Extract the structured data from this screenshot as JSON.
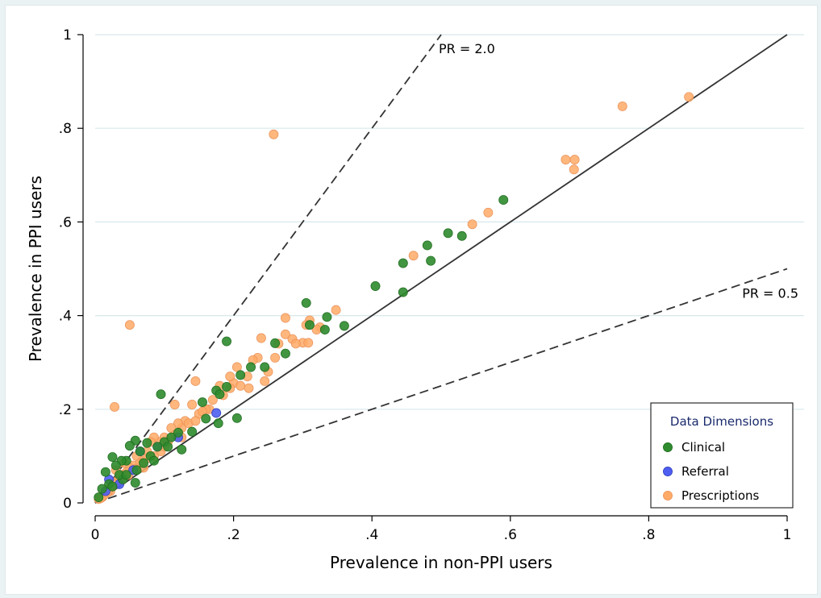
{
  "chart_data": {
    "type": "scatter",
    "title": "",
    "xlabel": "Prevalence in non-PPI users",
    "ylabel": "Prevalence in PPI users",
    "xlim": [
      0,
      1
    ],
    "ylim": [
      0,
      1
    ],
    "x_ticks": [
      {
        "value": 0,
        "label": "0"
      },
      {
        "value": 0.2,
        "label": ".2"
      },
      {
        "value": 0.4,
        "label": ".4"
      },
      {
        "value": 0.6,
        "label": ".6"
      },
      {
        "value": 0.8,
        "label": ".8"
      },
      {
        "value": 1,
        "label": "1"
      }
    ],
    "y_ticks": [
      {
        "value": 0,
        "label": "0"
      },
      {
        "value": 0.2,
        "label": ".2"
      },
      {
        "value": 0.4,
        "label": ".4"
      },
      {
        "value": 0.6,
        "label": ".6"
      },
      {
        "value": 0.8,
        "label": ".8"
      },
      {
        "value": 1,
        "label": "1"
      }
    ],
    "grid": true,
    "reference_lines": [
      {
        "slope": 2.0,
        "style": "dashed",
        "label": "PR = 2.0"
      },
      {
        "slope": 1.0,
        "style": "solid",
        "label": ""
      },
      {
        "slope": 0.5,
        "style": "dashed",
        "label": "PR = 0.5"
      }
    ],
    "legend": {
      "title": "Data Dimensions",
      "position": "bottom-right"
    },
    "series": [
      {
        "name": "Clinical",
        "color": "#2e8b2e",
        "points": [
          [
            0.59,
            0.647
          ],
          [
            0.53,
            0.57
          ],
          [
            0.51,
            0.576
          ],
          [
            0.48,
            0.55
          ],
          [
            0.485,
            0.517
          ],
          [
            0.445,
            0.512
          ],
          [
            0.405,
            0.463
          ],
          [
            0.445,
            0.45
          ],
          [
            0.36,
            0.378
          ],
          [
            0.335,
            0.397
          ],
          [
            0.305,
            0.427
          ],
          [
            0.31,
            0.38
          ],
          [
            0.332,
            0.37
          ],
          [
            0.275,
            0.319
          ],
          [
            0.26,
            0.341
          ],
          [
            0.245,
            0.29
          ],
          [
            0.225,
            0.29
          ],
          [
            0.21,
            0.273
          ],
          [
            0.19,
            0.345
          ],
          [
            0.19,
            0.248
          ],
          [
            0.175,
            0.24
          ],
          [
            0.18,
            0.232
          ],
          [
            0.205,
            0.181
          ],
          [
            0.178,
            0.17
          ],
          [
            0.155,
            0.215
          ],
          [
            0.16,
            0.18
          ],
          [
            0.14,
            0.152
          ],
          [
            0.125,
            0.114
          ],
          [
            0.095,
            0.232
          ],
          [
            0.12,
            0.15
          ],
          [
            0.1,
            0.13
          ],
          [
            0.09,
            0.12
          ],
          [
            0.075,
            0.128
          ],
          [
            0.065,
            0.11
          ],
          [
            0.058,
            0.133
          ],
          [
            0.05,
            0.122
          ],
          [
            0.045,
            0.09
          ],
          [
            0.038,
            0.09
          ],
          [
            0.025,
            0.098
          ],
          [
            0.03,
            0.08
          ],
          [
            0.015,
            0.066
          ],
          [
            0.02,
            0.04
          ],
          [
            0.01,
            0.03
          ],
          [
            0.058,
            0.043
          ],
          [
            0.04,
            0.05
          ],
          [
            0.06,
            0.07
          ],
          [
            0.07,
            0.085
          ],
          [
            0.08,
            0.1
          ],
          [
            0.11,
            0.14
          ],
          [
            0.085,
            0.09
          ],
          [
            0.035,
            0.06
          ],
          [
            0.005,
            0.012
          ],
          [
            0.025,
            0.035
          ],
          [
            0.045,
            0.06
          ],
          [
            0.105,
            0.12
          ]
        ]
      },
      {
        "name": "Referral",
        "color": "#4d5ef0",
        "points": [
          [
            0.175,
            0.192
          ],
          [
            0.02,
            0.05
          ],
          [
            0.055,
            0.07
          ],
          [
            0.065,
            0.11
          ],
          [
            0.035,
            0.04
          ],
          [
            0.09,
            0.12
          ],
          [
            0.12,
            0.14
          ],
          [
            0.015,
            0.025
          ]
        ]
      },
      {
        "name": "Prescriptions",
        "color": "#ffaa66",
        "points": [
          [
            0.858,
            0.867
          ],
          [
            0.762,
            0.847
          ],
          [
            0.68,
            0.733
          ],
          [
            0.693,
            0.733
          ],
          [
            0.692,
            0.712
          ],
          [
            0.568,
            0.62
          ],
          [
            0.545,
            0.595
          ],
          [
            0.46,
            0.528
          ],
          [
            0.258,
            0.787
          ],
          [
            0.05,
            0.38
          ],
          [
            0.028,
            0.205
          ],
          [
            0.348,
            0.412
          ],
          [
            0.325,
            0.375
          ],
          [
            0.31,
            0.39
          ],
          [
            0.305,
            0.38
          ],
          [
            0.3,
            0.342
          ],
          [
            0.308,
            0.342
          ],
          [
            0.275,
            0.395
          ],
          [
            0.275,
            0.36
          ],
          [
            0.285,
            0.35
          ],
          [
            0.265,
            0.34
          ],
          [
            0.24,
            0.352
          ],
          [
            0.235,
            0.31
          ],
          [
            0.25,
            0.28
          ],
          [
            0.245,
            0.26
          ],
          [
            0.228,
            0.305
          ],
          [
            0.22,
            0.27
          ],
          [
            0.222,
            0.245
          ],
          [
            0.205,
            0.29
          ],
          [
            0.2,
            0.256
          ],
          [
            0.195,
            0.245
          ],
          [
            0.185,
            0.23
          ],
          [
            0.17,
            0.22
          ],
          [
            0.165,
            0.2
          ],
          [
            0.145,
            0.26
          ],
          [
            0.14,
            0.21
          ],
          [
            0.115,
            0.21
          ],
          [
            0.13,
            0.175
          ],
          [
            0.125,
            0.16
          ],
          [
            0.12,
            0.17
          ],
          [
            0.11,
            0.16
          ],
          [
            0.1,
            0.14
          ],
          [
            0.092,
            0.13
          ],
          [
            0.085,
            0.14
          ],
          [
            0.08,
            0.13
          ],
          [
            0.075,
            0.11
          ],
          [
            0.068,
            0.09
          ],
          [
            0.06,
            0.1
          ],
          [
            0.055,
            0.08
          ],
          [
            0.05,
            0.075
          ],
          [
            0.045,
            0.065
          ],
          [
            0.04,
            0.06
          ],
          [
            0.035,
            0.05
          ],
          [
            0.03,
            0.045
          ],
          [
            0.025,
            0.035
          ],
          [
            0.02,
            0.03
          ],
          [
            0.015,
            0.02
          ],
          [
            0.01,
            0.012
          ],
          [
            0.005,
            0.008
          ],
          [
            0.03,
            0.07
          ],
          [
            0.042,
            0.085
          ],
          [
            0.07,
            0.075
          ],
          [
            0.095,
            0.11
          ],
          [
            0.105,
            0.13
          ],
          [
            0.135,
            0.17
          ],
          [
            0.15,
            0.19
          ],
          [
            0.16,
            0.2
          ],
          [
            0.18,
            0.25
          ],
          [
            0.075,
            0.095
          ],
          [
            0.065,
            0.085
          ],
          [
            0.058,
            0.072
          ],
          [
            0.048,
            0.06
          ],
          [
            0.038,
            0.048
          ],
          [
            0.022,
            0.025
          ],
          [
            0.085,
            0.1
          ],
          [
            0.115,
            0.145
          ],
          [
            0.125,
            0.14
          ],
          [
            0.145,
            0.175
          ],
          [
            0.155,
            0.195
          ],
          [
            0.195,
            0.27
          ],
          [
            0.21,
            0.25
          ],
          [
            0.26,
            0.31
          ],
          [
            0.29,
            0.34
          ],
          [
            0.32,
            0.37
          ],
          [
            0.035,
            0.055
          ],
          [
            0.028,
            0.04
          ],
          [
            0.018,
            0.022
          ],
          [
            0.012,
            0.015
          ],
          [
            0.008,
            0.01
          ],
          [
            0.1,
            0.12
          ]
        ]
      }
    ]
  }
}
